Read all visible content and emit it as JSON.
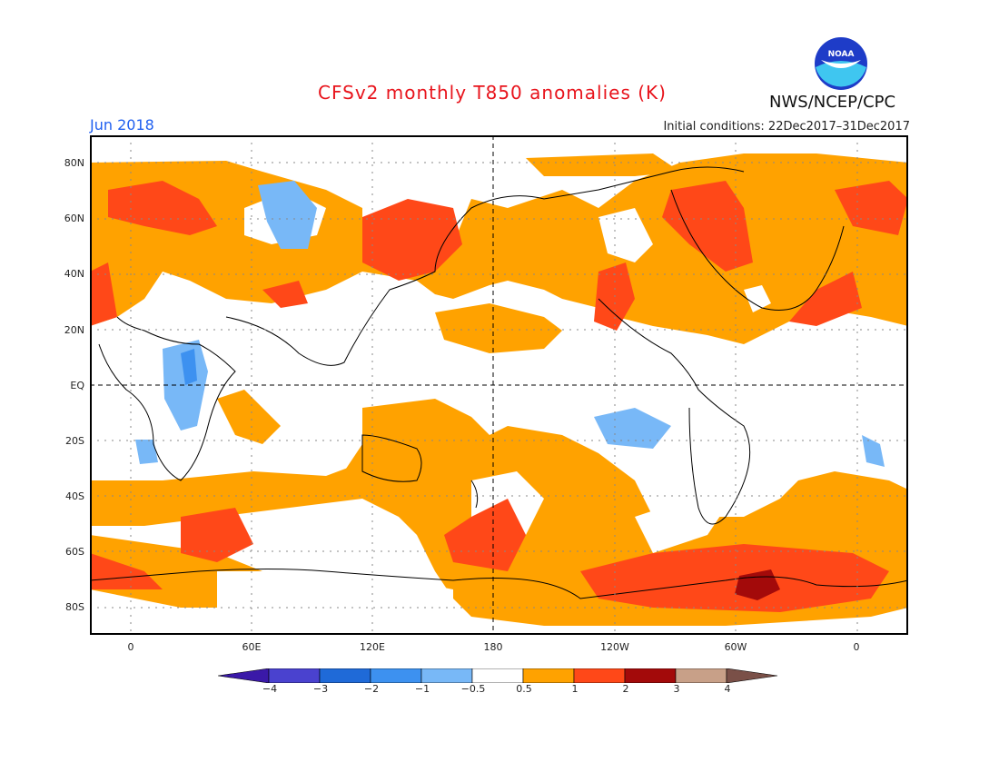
{
  "header": {
    "title": "CFSv2 monthly T850 anomalies (K)",
    "month": "Jun 2018",
    "initial_conditions": "Initial conditions: 22Dec2017–31Dec2017",
    "agency": "NWS/NCEP/CPC",
    "logo_text": "NOAA"
  },
  "axes": {
    "lat_labels": [
      "80N",
      "60N",
      "40N",
      "20N",
      "EQ",
      "20S",
      "40S",
      "60S",
      "80S"
    ],
    "lon_labels": [
      "0",
      "60E",
      "120E",
      "180",
      "120W",
      "60W",
      "0"
    ]
  },
  "colorbar": {
    "labels": [
      "−4",
      "−3",
      "−2",
      "−1",
      "−0.5",
      "0.5",
      "1",
      "2",
      "3",
      "4"
    ],
    "colors": [
      "#3a19a8",
      "#4a42cf",
      "#1f6ad8",
      "#3d91f0",
      "#78b8f7",
      "#ffffff",
      "#ffa200",
      "#ff4818",
      "#a30a0a",
      "#c8a088",
      "#7a5048"
    ]
  },
  "colors": {
    "title": "#e8141c",
    "month": "#2060f0",
    "warm1": "#ffa200",
    "warm2": "#ff4818",
    "warm3": "#a30a0a",
    "cool1": "#78b8f7",
    "cool2": "#3d91f0"
  }
}
